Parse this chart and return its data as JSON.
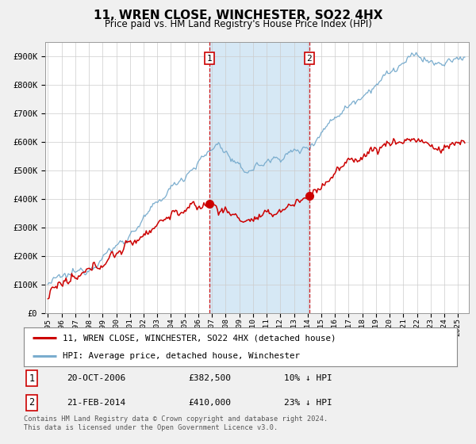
{
  "title": "11, WREN CLOSE, WINCHESTER, SO22 4HX",
  "subtitle": "Price paid vs. HM Land Registry's House Price Index (HPI)",
  "footer": "Contains HM Land Registry data © Crown copyright and database right 2024.\nThis data is licensed under the Open Government Licence v3.0.",
  "legend_label_red": "11, WREN CLOSE, WINCHESTER, SO22 4HX (detached house)",
  "legend_label_blue": "HPI: Average price, detached house, Winchester",
  "transaction1_date": "20-OCT-2006",
  "transaction1_price": "£382,500",
  "transaction1_hpi": "10% ↓ HPI",
  "transaction2_date": "21-FEB-2014",
  "transaction2_price": "£410,000",
  "transaction2_hpi": "23% ↓ HPI",
  "red_color": "#cc0000",
  "blue_color": "#7aadce",
  "shade_color": "#d6e8f5",
  "vline_color": "#cc0000",
  "background_color": "#f0f0f0",
  "plot_bg_color": "#ffffff",
  "ylim": [
    0,
    950000
  ],
  "yticks": [
    0,
    100000,
    200000,
    300000,
    400000,
    500000,
    600000,
    700000,
    800000,
    900000
  ],
  "ytick_labels": [
    "£0",
    "£100K",
    "£200K",
    "£300K",
    "£400K",
    "£500K",
    "£600K",
    "£700K",
    "£800K",
    "£900K"
  ],
  "vline1_x": 2006.8,
  "vline2_x": 2014.13,
  "marker1_y": 382500,
  "marker2_y": 410000,
  "xmin": 1994.8,
  "xmax": 2025.8
}
